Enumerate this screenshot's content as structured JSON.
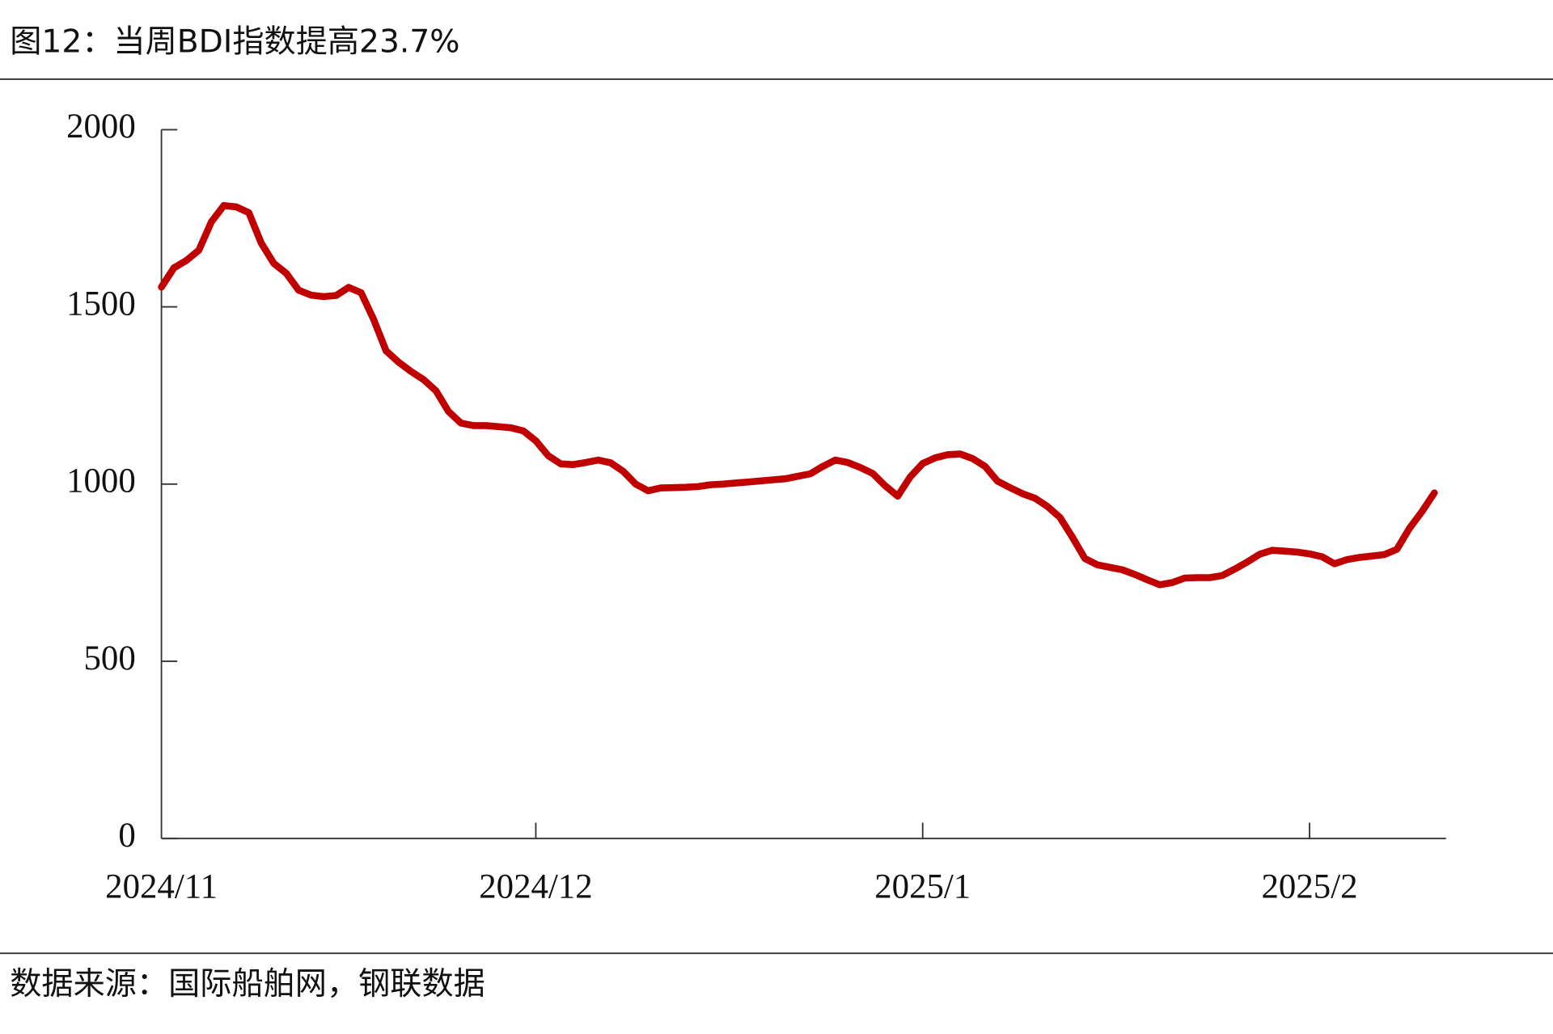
{
  "chart_data": {
    "type": "line",
    "title": "图12：当周BDI指数提高23.7%",
    "source": "数据来源：国际船舶网，钢联数据",
    "color": "#c00000",
    "categories": [
      "2024/11",
      null,
      null,
      null,
      null,
      null,
      null,
      null,
      null,
      null,
      null,
      null,
      null,
      null,
      null,
      null,
      null,
      null,
      null,
      null,
      null,
      null,
      null,
      null,
      null,
      null,
      null,
      null,
      null,
      null,
      "2024/12",
      null,
      null,
      null,
      null,
      null,
      null,
      null,
      null,
      null,
      null,
      null,
      null,
      null,
      null,
      null,
      null,
      null,
      null,
      null,
      null,
      null,
      null,
      null,
      null,
      null,
      null,
      null,
      null,
      null,
      null,
      "2025/1",
      null,
      null,
      null,
      null,
      null,
      null,
      null,
      null,
      null,
      null,
      null,
      null,
      null,
      null,
      null,
      null,
      null,
      null,
      null,
      null,
      null,
      null,
      null,
      null,
      null,
      null,
      null,
      null,
      null,
      null,
      "2025/2",
      null,
      null,
      null,
      null,
      null,
      null,
      null,
      null,
      null,
      null
    ],
    "values": [
      1556,
      1610,
      1631,
      1660,
      1740,
      1786,
      1782,
      1766,
      1680,
      1623,
      1595,
      1547,
      1533,
      1529,
      1532,
      1555,
      1540,
      1465,
      1376,
      1344,
      1318,
      1295,
      1263,
      1205,
      1172,
      1165,
      1165,
      1162,
      1159,
      1150,
      1122,
      1080,
      1057,
      1055,
      1061,
      1068,
      1060,
      1036,
      1000,
      981,
      989,
      990,
      991,
      993,
      998,
      1000,
      1003,
      1006,
      1009,
      1012,
      1015,
      1022,
      1029,
      1050,
      1068,
      1061,
      1047,
      1030,
      995,
      966,
      1020,
      1058,
      1074,
      1083,
      1085,
      1072,
      1050,
      1008,
      990,
      973,
      960,
      937,
      906,
      850,
      790,
      772,
      765,
      758,
      745,
      730,
      716,
      722,
      735,
      736,
      736,
      742,
      760,
      780,
      802,
      813,
      811,
      808,
      803,
      795,
      775,
      787,
      793,
      797,
      801,
      816,
      875,
      922,
      975
    ],
    "ylim": [
      0,
      2000
    ],
    "yticks": [
      0,
      500,
      1000,
      1500,
      2000
    ]
  }
}
